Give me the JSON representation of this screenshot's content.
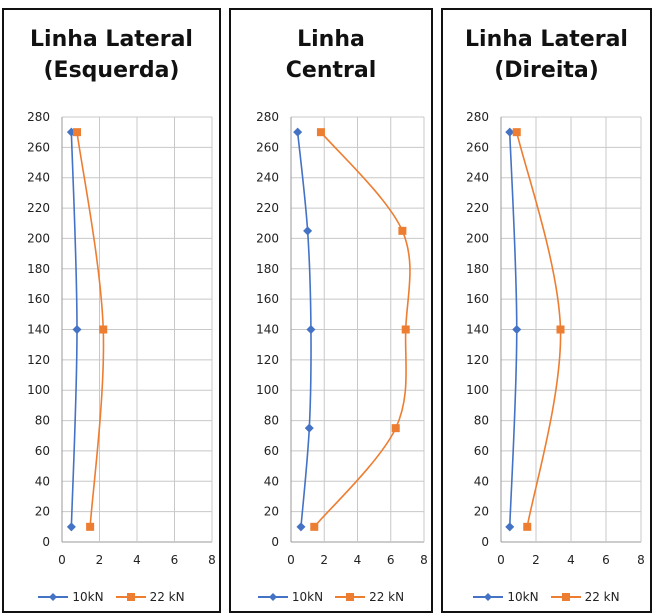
{
  "chart_data": [
    {
      "type": "line",
      "title": [
        "Linha Lateral",
        "(Esquerda)"
      ],
      "xlim": [
        0,
        8
      ],
      "ylim": [
        0,
        280
      ],
      "xticks": [
        0,
        2,
        4,
        6,
        8
      ],
      "yticks": [
        0,
        20,
        40,
        60,
        80,
        100,
        120,
        140,
        160,
        180,
        200,
        220,
        240,
        260,
        280
      ],
      "grid": true,
      "legend": "bottom",
      "series": [
        {
          "name": "10kN",
          "color": "#4472C4",
          "marker": "diamond",
          "x": [
            0.5,
            0.8,
            0.5
          ],
          "y": [
            10,
            140,
            270
          ]
        },
        {
          "name": "22 kN",
          "color": "#ED7D31",
          "marker": "square",
          "x": [
            1.5,
            2.2,
            0.8
          ],
          "y": [
            10,
            140,
            270
          ]
        }
      ]
    },
    {
      "type": "line",
      "title": [
        "Linha",
        "Central"
      ],
      "xlim": [
        0,
        8
      ],
      "ylim": [
        0,
        280
      ],
      "xticks": [
        0,
        2,
        4,
        6,
        8
      ],
      "yticks": [
        0,
        20,
        40,
        60,
        80,
        100,
        120,
        140,
        160,
        180,
        200,
        220,
        240,
        260,
        280
      ],
      "grid": true,
      "legend": "bottom",
      "series": [
        {
          "name": "10kN",
          "color": "#4472C4",
          "marker": "diamond",
          "x": [
            0.6,
            1.1,
            1.2,
            1.0,
            0.4
          ],
          "y": [
            10,
            75,
            140,
            205,
            270
          ]
        },
        {
          "name": "22 kN",
          "color": "#ED7D31",
          "marker": "square",
          "x": [
            1.4,
            6.3,
            6.9,
            6.7,
            1.8
          ],
          "y": [
            10,
            75,
            140,
            205,
            270
          ]
        }
      ]
    },
    {
      "type": "line",
      "title": [
        "Linha Lateral",
        "(Direita)"
      ],
      "xlim": [
        0,
        8
      ],
      "ylim": [
        0,
        280
      ],
      "xticks": [
        0,
        2,
        4,
        6,
        8
      ],
      "yticks": [
        0,
        20,
        40,
        60,
        80,
        100,
        120,
        140,
        160,
        180,
        200,
        220,
        240,
        260,
        280
      ],
      "grid": true,
      "legend": "bottom",
      "series": [
        {
          "name": "10kN",
          "color": "#4472C4",
          "marker": "diamond",
          "x": [
            0.5,
            0.9,
            0.5
          ],
          "y": [
            10,
            140,
            270
          ]
        },
        {
          "name": "22 kN",
          "color": "#ED7D31",
          "marker": "square",
          "x": [
            1.5,
            3.4,
            0.9
          ],
          "y": [
            10,
            140,
            270
          ]
        }
      ]
    }
  ]
}
